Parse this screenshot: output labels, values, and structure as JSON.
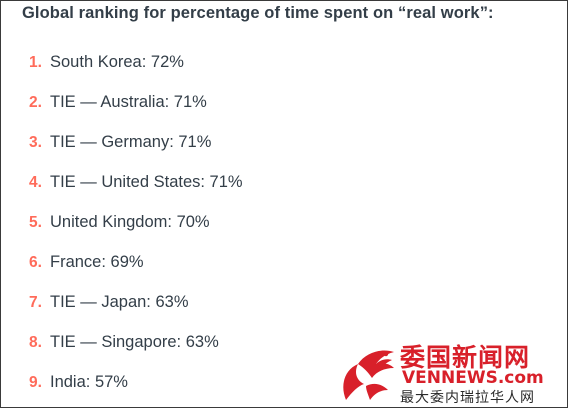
{
  "heading": "Global ranking for percentage of time spent on “real work”:",
  "ranking": [
    {
      "num": "1.",
      "text": "South Korea: 72%"
    },
    {
      "num": "2.",
      "text": "TIE — Australia: 71%"
    },
    {
      "num": "3.",
      "text": "TIE — Germany: 71%"
    },
    {
      "num": "4.",
      "text": "TIE — United States: 71%"
    },
    {
      "num": "5.",
      "text": "United Kingdom: 70%"
    },
    {
      "num": "6.",
      "text": "France: 69%"
    },
    {
      "num": "7.",
      "text": "TIE — Japan: 63%"
    },
    {
      "num": "8.",
      "text": "TIE — Singapore: 63%"
    },
    {
      "num": "9.",
      "text": "India: 57%"
    }
  ],
  "watermark": {
    "chinese_title": "委国新闻网",
    "english": "VENNEWS.com",
    "subtitle": "最大委内瑞拉华人网",
    "logo_icon": "red-phoenix-icon",
    "color": "#d8202a"
  },
  "colors": {
    "text": "#333e48",
    "number_accent": "#ff6b5a"
  }
}
